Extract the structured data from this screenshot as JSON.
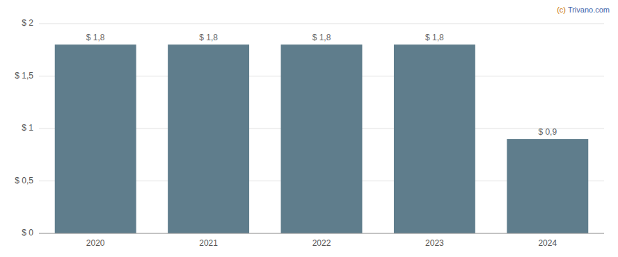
{
  "chart_data": {
    "type": "bar",
    "categories": [
      "2020",
      "2021",
      "2022",
      "2023",
      "2024"
    ],
    "values": [
      1.8,
      1.8,
      1.8,
      1.8,
      0.9
    ],
    "value_labels": [
      "$ 1,8",
      "$ 1,8",
      "$ 1,8",
      "$ 1,8",
      "$ 0,9"
    ],
    "data_labels": true,
    "color": "#5f7d8c",
    "ylim": [
      0,
      2.0
    ],
    "yticks": [
      {
        "value": 0,
        "label": "$ 0"
      },
      {
        "value": 0.5,
        "label": "$ 0,5"
      },
      {
        "value": 1.0,
        "label": "$ 1"
      },
      {
        "value": 1.5,
        "label": "$ 1,5"
      },
      {
        "value": 2.0,
        "label": "$ 2"
      }
    ],
    "grid": true,
    "annotations": [
      {
        "text": "(c)",
        "color": "#cc7700"
      },
      {
        "text": "Trivano.com",
        "color": "#4466aa"
      }
    ]
  }
}
